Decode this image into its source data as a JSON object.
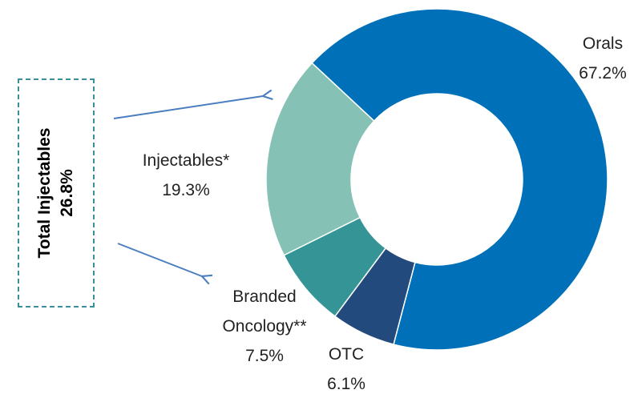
{
  "chart_data": {
    "type": "donut",
    "categories": [
      "Orals",
      "OTC",
      "Branded Oncology**",
      "Injectables*"
    ],
    "values": [
      67.2,
      6.1,
      7.5,
      19.3
    ],
    "value_labels": [
      "67.2%",
      "6.1%",
      "7.5%",
      "19.3%"
    ],
    "colors": [
      "#0070b8",
      "#234a7c",
      "#359496",
      "#85c1b5"
    ],
    "annotation": {
      "title": "Total Injectables",
      "value": "26.8%"
    }
  }
}
